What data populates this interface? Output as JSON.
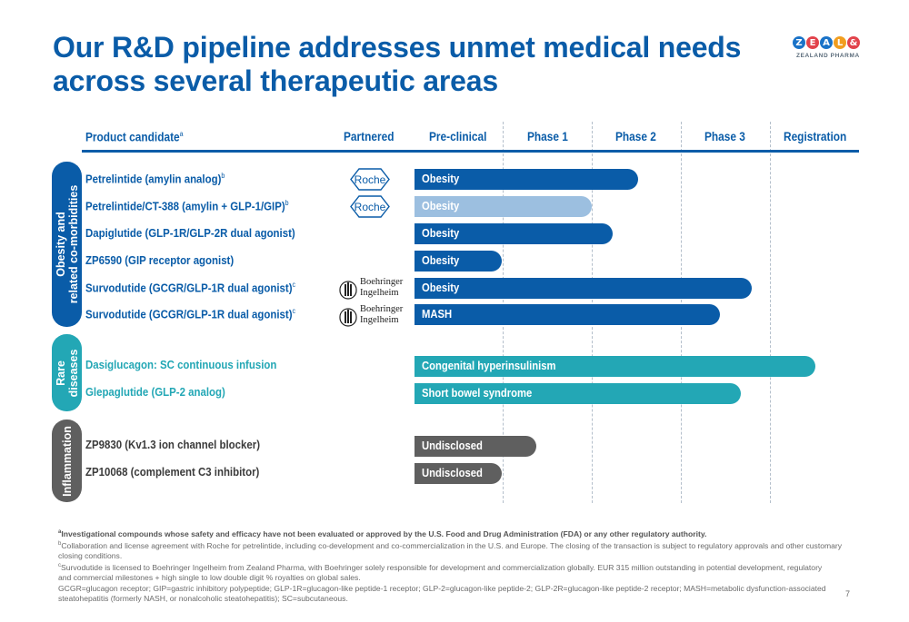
{
  "title": "Our R&D pipeline addresses unmet medical needs across several therapeutic areas",
  "logo": {
    "letters": [
      "Z",
      "E",
      "A",
      "L",
      "&"
    ],
    "colors": [
      "#1a73c8",
      "#e2434b",
      "#1a73c8",
      "#f29e1f",
      "#e2434b"
    ],
    "subtitle": "ZEALAND PHARMA"
  },
  "headers": {
    "product": "Product candidate",
    "product_sup": "a",
    "partnered": "Partnered",
    "preclinical": "Pre-clinical",
    "phase1": "Phase 1",
    "phase2": "Phase 2",
    "phase3": "Phase 3",
    "registration": "Registration"
  },
  "groups": [
    {
      "label_line1": "Obesity and",
      "label_line2": "related co-morbidities",
      "color": "#0a5ca8"
    },
    {
      "label_line1": "Rare",
      "label_line2": "diseases",
      "color": "#23a7b5"
    },
    {
      "label_line1": "Inflammation",
      "label_line2": "",
      "color": "#5f5f5f"
    }
  ],
  "rows": [
    {
      "name": "Petrelintide (amylin analog)",
      "sup": "b",
      "partner": "Roche",
      "bar_label": "Obesity",
      "bar_color": "#0a5ca8"
    },
    {
      "name": "Petrelintide/CT-388 (amylin + GLP-1/GIP)",
      "sup": "b",
      "partner": "Roche",
      "bar_label": "Obesity",
      "bar_color": "#9cbfe0"
    },
    {
      "name": "Dapiglutide (GLP-1R/GLP-2R dual agonist)",
      "sup": "",
      "partner": "",
      "bar_label": "Obesity",
      "bar_color": "#0a5ca8"
    },
    {
      "name": "ZP6590 (GIP receptor agonist)",
      "sup": "",
      "partner": "",
      "bar_label": "Obesity",
      "bar_color": "#0a5ca8"
    },
    {
      "name": "Survodutide (GCGR/GLP-1R dual agonist)",
      "sup": "c",
      "partner": "Boehringer Ingelheim",
      "bar_label": "Obesity",
      "bar_color": "#0a5ca8"
    },
    {
      "name": "Survodutide (GCGR/GLP-1R dual agonist)",
      "sup": "c",
      "partner": "Boehringer Ingelheim",
      "bar_label": "MASH",
      "bar_color": "#0a5ca8"
    },
    {
      "name": "Dasiglucagon: SC continuous infusion",
      "sup": "",
      "partner": "",
      "bar_label": "Congenital hyperinsulinism",
      "bar_color": "#23a7b5"
    },
    {
      "name": "Glepaglutide (GLP-2 analog)",
      "sup": "",
      "partner": "",
      "bar_label": "Short bowel syndrome",
      "bar_color": "#23a7b5"
    },
    {
      "name": "ZP9830 (Kv1.3 ion channel blocker)",
      "sup": "",
      "partner": "",
      "bar_label": "Undisclosed",
      "bar_color": "#5f5f5f"
    },
    {
      "name": "ZP10068 (complement C3 inhibitor)",
      "sup": "",
      "partner": "",
      "bar_label": "Undisclosed",
      "bar_color": "#5f5f5f"
    }
  ],
  "partners": {
    "roche": "Roche",
    "bi_line1": "Boehringer",
    "bi_line2": "Ingelheim"
  },
  "footnotes": {
    "a": "Investigational compounds whose safety and efficacy have not been evaluated or approved by the U.S. Food and Drug Administration (FDA) or any other regulatory authority.",
    "b": "Collaboration and license agreement with Roche for petrelintide, including co-development and co-commercialization in the U.S. and Europe. The closing of the transaction is subject to regulatory approvals and other customary closing conditions.",
    "c": "Survodutide is licensed to Boehringer Ingelheim from Zealand Pharma, with Boehringer solely responsible for development and commercialization globally. EUR 315 million outstanding in potential development, regulatory and commercial milestones + high single to low double digit % royalties on global sales.",
    "abbrev": "GCGR=glucagon receptor; GIP=gastric inhibitory polypeptide; GLP-1R=glucagon-like peptide-1 receptor; GLP-2=glucagon-like peptide-2; GLP-2R=glucagon-like peptide-2 receptor; MASH=metabolic dysfunction-associated steatohepatitis (formerly NASH, or nonalcoholic steatohepatitis); SC=subcutaneous."
  },
  "sup_labels": {
    "a": "a",
    "b": "b",
    "c": "c"
  },
  "page_number": "7"
}
